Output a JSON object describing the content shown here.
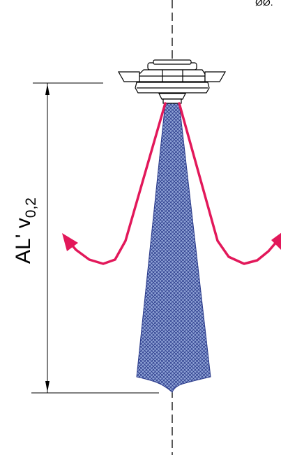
{
  "diagram": {
    "corner_label": "ØØ.",
    "dimension": {
      "main_text": "AL' v",
      "subscript": "0,2"
    },
    "colors": {
      "line": "#000000",
      "jet": "#e2185a",
      "cone_fill": "#8fa3d6",
      "cone_hatch": "#2a3a8a",
      "device_fill": "#ffffff"
    }
  }
}
